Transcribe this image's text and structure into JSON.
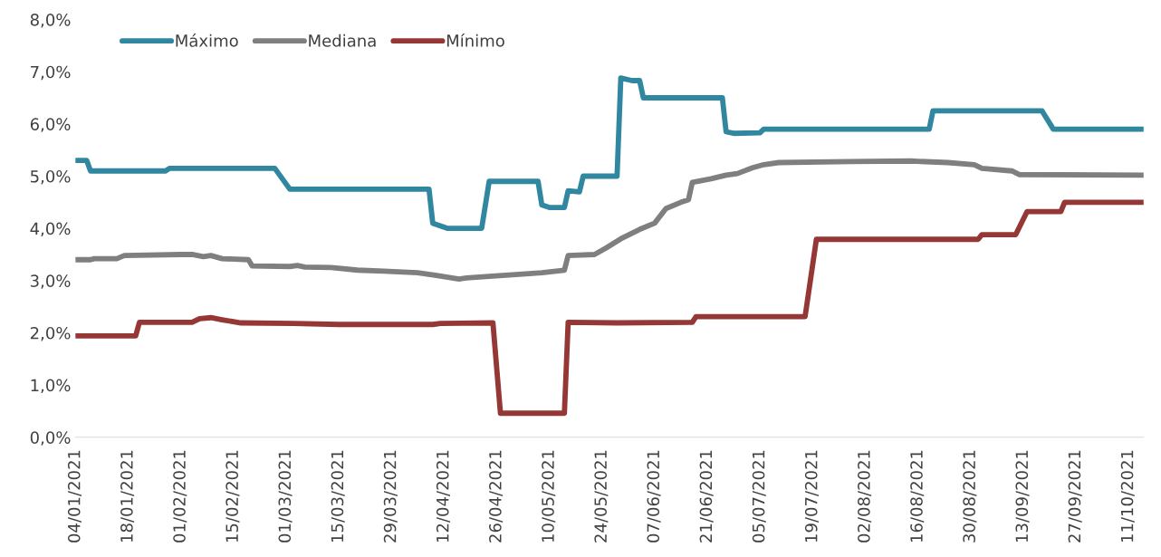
{
  "chart_data": {
    "type": "line",
    "ylim": [
      0,
      8
    ],
    "yticks": [
      {
        "value": 0,
        "label": "0,0%"
      },
      {
        "value": 1,
        "label": "1,0%"
      },
      {
        "value": 2,
        "label": "2,0%"
      },
      {
        "value": 3,
        "label": "3,0%"
      },
      {
        "value": 4,
        "label": "4,0%"
      },
      {
        "value": 5,
        "label": "5,0%"
      },
      {
        "value": 6,
        "label": "6,0%"
      },
      {
        "value": 7,
        "label": "7,0%"
      },
      {
        "value": 8,
        "label": "8,0%"
      }
    ],
    "xlim": [
      "2021-01-04",
      "2021-10-15"
    ],
    "xticks": [
      {
        "value": "2021-01-04",
        "label": "04/01/2021"
      },
      {
        "value": "2021-01-18",
        "label": "18/01/2021"
      },
      {
        "value": "2021-02-01",
        "label": "01/02/2021"
      },
      {
        "value": "2021-02-15",
        "label": "15/02/2021"
      },
      {
        "value": "2021-03-01",
        "label": "01/03/2021"
      },
      {
        "value": "2021-03-15",
        "label": "15/03/2021"
      },
      {
        "value": "2021-03-29",
        "label": "29/03/2021"
      },
      {
        "value": "2021-04-12",
        "label": "12/04/2021"
      },
      {
        "value": "2021-04-26",
        "label": "26/04/2021"
      },
      {
        "value": "2021-05-10",
        "label": "10/05/2021"
      },
      {
        "value": "2021-05-24",
        "label": "24/05/2021"
      },
      {
        "value": "2021-06-07",
        "label": "07/06/2021"
      },
      {
        "value": "2021-06-21",
        "label": "21/06/2021"
      },
      {
        "value": "2021-07-05",
        "label": "05/07/2021"
      },
      {
        "value": "2021-07-19",
        "label": "19/07/2021"
      },
      {
        "value": "2021-08-02",
        "label": "02/08/2021"
      },
      {
        "value": "2021-08-16",
        "label": "16/08/2021"
      },
      {
        "value": "2021-08-30",
        "label": "30/08/2021"
      },
      {
        "value": "2021-09-13",
        "label": "13/09/2021"
      },
      {
        "value": "2021-09-27",
        "label": "27/09/2021"
      },
      {
        "value": "2021-10-11",
        "label": "11/10/2021"
      }
    ],
    "grid": false,
    "legend": "top left",
    "marker": "none",
    "line_style": "solid",
    "series": [
      {
        "name": "Máximo",
        "color": "#31879f",
        "x": [
          "2021-01-04",
          "2021-01-07",
          "2021-01-08",
          "2021-01-28",
          "2021-01-29",
          "2021-02-26",
          "2021-03-02",
          "2021-04-08",
          "2021-04-09",
          "2021-04-13",
          "2021-04-22",
          "2021-04-24",
          "2021-05-07",
          "2021-05-08",
          "2021-05-10",
          "2021-05-14",
          "2021-05-15",
          "2021-05-18",
          "2021-05-19",
          "2021-05-28",
          "2021-05-29",
          "2021-06-01",
          "2021-06-03",
          "2021-06-04",
          "2021-06-25",
          "2021-06-26",
          "2021-06-28",
          "2021-07-05",
          "2021-07-06",
          "2021-08-19",
          "2021-08-20",
          "2021-09-18",
          "2021-09-21",
          "2021-10-15"
        ],
        "values": [
          5.3,
          5.3,
          5.1,
          5.1,
          5.15,
          5.15,
          4.75,
          4.75,
          4.1,
          4.0,
          4.0,
          4.9,
          4.9,
          4.45,
          4.4,
          4.4,
          4.72,
          4.7,
          5.0,
          5.0,
          6.88,
          6.83,
          6.83,
          6.5,
          6.5,
          5.85,
          5.82,
          5.83,
          5.9,
          5.9,
          6.25,
          6.25,
          5.9,
          5.9
        ]
      },
      {
        "name": "Mediana",
        "color": "#7f7f7f",
        "x": [
          "2021-01-04",
          "2021-01-08",
          "2021-01-09",
          "2021-01-15",
          "2021-01-17",
          "2021-02-01",
          "2021-02-04",
          "2021-02-07",
          "2021-02-09",
          "2021-02-12",
          "2021-02-19",
          "2021-02-20",
          "2021-03-02",
          "2021-03-04",
          "2021-03-06",
          "2021-03-13",
          "2021-03-20",
          "2021-03-27",
          "2021-04-05",
          "2021-04-10",
          "2021-04-16",
          "2021-04-18",
          "2021-04-24",
          "2021-05-02",
          "2021-05-08",
          "2021-05-14",
          "2021-05-15",
          "2021-05-22",
          "2021-05-25",
          "2021-05-29",
          "2021-06-03",
          "2021-06-07",
          "2021-06-10",
          "2021-06-14",
          "2021-06-16",
          "2021-06-17",
          "2021-06-22",
          "2021-06-26",
          "2021-06-29",
          "2021-07-03",
          "2021-07-06",
          "2021-07-10",
          "2021-07-29",
          "2021-08-14",
          "2021-08-24",
          "2021-08-31",
          "2021-09-02",
          "2021-09-10",
          "2021-09-12",
          "2021-10-15"
        ],
        "values": [
          3.4,
          3.4,
          3.42,
          3.42,
          3.48,
          3.5,
          3.5,
          3.46,
          3.48,
          3.42,
          3.4,
          3.28,
          3.27,
          3.29,
          3.26,
          3.25,
          3.2,
          3.18,
          3.15,
          3.1,
          3.03,
          3.05,
          3.08,
          3.12,
          3.15,
          3.2,
          3.48,
          3.5,
          3.62,
          3.8,
          3.98,
          4.1,
          4.38,
          4.5,
          4.55,
          4.88,
          4.95,
          5.02,
          5.05,
          5.16,
          5.22,
          5.26,
          5.28,
          5.29,
          5.26,
          5.22,
          5.15,
          5.1,
          5.03,
          5.02
        ]
      },
      {
        "name": "Mínimo",
        "color": "#953735",
        "x": [
          "2021-01-04",
          "2021-01-20",
          "2021-01-21",
          "2021-02-04",
          "2021-02-06",
          "2021-02-09",
          "2021-02-12",
          "2021-02-17",
          "2021-03-03",
          "2021-03-15",
          "2021-04-09",
          "2021-04-11",
          "2021-04-25",
          "2021-04-27",
          "2021-05-14",
          "2021-05-15",
          "2021-05-28",
          "2021-06-17",
          "2021-06-18",
          "2021-07-17",
          "2021-07-20",
          "2021-09-01",
          "2021-09-02",
          "2021-09-11",
          "2021-09-14",
          "2021-09-23",
          "2021-09-24",
          "2021-10-15"
        ],
        "values": [
          1.94,
          1.94,
          2.2,
          2.2,
          2.27,
          2.29,
          2.25,
          2.19,
          2.18,
          2.16,
          2.16,
          2.18,
          2.19,
          0.46,
          0.46,
          2.2,
          2.19,
          2.2,
          2.31,
          2.31,
          3.79,
          3.79,
          3.88,
          3.88,
          4.32,
          4.32,
          4.5,
          4.5
        ]
      }
    ]
  }
}
